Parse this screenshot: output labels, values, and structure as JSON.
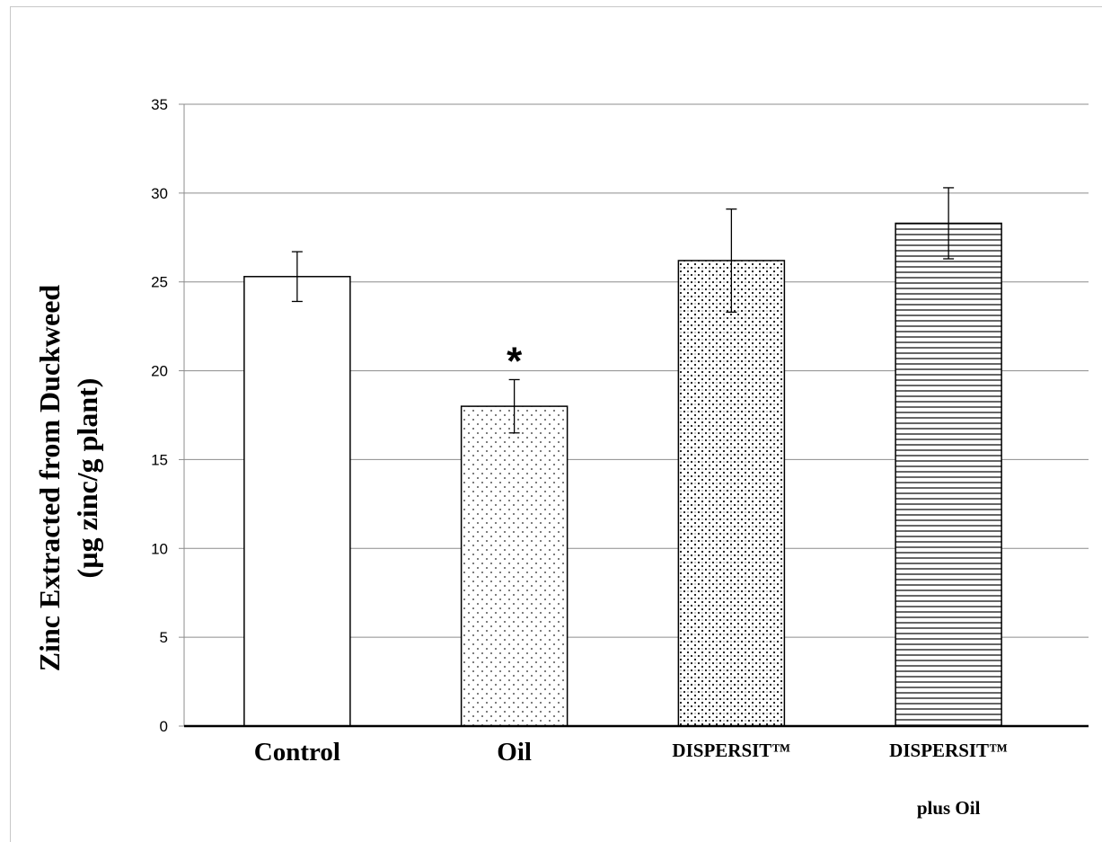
{
  "chart_data": {
    "type": "bar",
    "categories": [
      "Control",
      "Oil",
      "DISPERSIT™",
      "DISPERSIT™ plus Oil"
    ],
    "category_label_lines": [
      [
        "Control"
      ],
      [
        "Oil"
      ],
      [
        "DISPERSIT™"
      ],
      [
        "DISPERSIT™",
        "plus Oil"
      ]
    ],
    "values": [
      25.3,
      18.0,
      26.2,
      28.3
    ],
    "error_low": [
      23.9,
      16.5,
      23.3,
      26.3
    ],
    "error_high": [
      26.7,
      19.5,
      29.1,
      30.3
    ],
    "fill_patterns": [
      "none",
      "fine-dots",
      "dense-dots",
      "horizontal-lines"
    ],
    "annotations": [
      {
        "category": "Oil",
        "text": "*"
      }
    ],
    "ylabel_lines": [
      "Zinc Extracted from Duckweed",
      "(µg zinc/g plant)"
    ],
    "ylim": [
      0,
      35
    ],
    "yticks": [
      0,
      5,
      10,
      15,
      20,
      25,
      30,
      35
    ],
    "grid": true,
    "legend": "none"
  }
}
